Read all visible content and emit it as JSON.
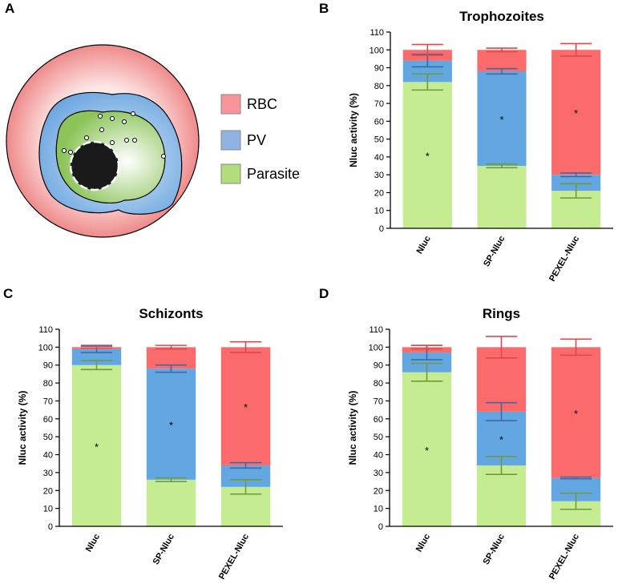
{
  "diagram": {
    "panel_label": "A",
    "legend": [
      {
        "label": "RBC",
        "color": "#f7959a"
      },
      {
        "label": "PV",
        "color": "#8fb3e0"
      },
      {
        "label": "Parasite",
        "color": "#b3dc7a"
      }
    ]
  },
  "chart_data": [
    {
      "type": "bar",
      "stacked": true,
      "panel_label": "B",
      "title": "Trophozoites",
      "ylabel": "Nluc activity (%)",
      "categories": [
        "Nluc",
        "SP-Nluc",
        "PEXEL-Nluc"
      ],
      "ylim": [
        0,
        110
      ],
      "yticks": [
        0,
        10,
        20,
        30,
        40,
        50,
        60,
        70,
        80,
        90,
        100,
        110
      ],
      "series": [
        {
          "color": "#c6ec92",
          "error_color": "#6f9a3a",
          "values": [
            82,
            35,
            21
          ],
          "errors": [
            4.5,
            1,
            4
          ],
          "annotations": [
            "*",
            null,
            null
          ]
        },
        {
          "color": "#62a6e2",
          "error_color": "#3f6aa5",
          "values": [
            12,
            53,
            9
          ],
          "errors": [
            3.5,
            1.5,
            1
          ],
          "annotations": [
            null,
            "*",
            null
          ]
        },
        {
          "color": "#fb6b6b",
          "error_color": "#e0474a",
          "values": [
            6,
            12,
            70
          ],
          "errors": [
            3,
            1,
            3.5
          ],
          "annotations": [
            null,
            null,
            "*"
          ]
        }
      ]
    },
    {
      "type": "bar",
      "stacked": true,
      "panel_label": "C",
      "title": "Schizonts",
      "ylabel": "Nluc activity (%)",
      "categories": [
        "Nluc",
        "SP-Nluc",
        "PEXEL-Nluc"
      ],
      "ylim": [
        0,
        110
      ],
      "yticks": [
        0,
        10,
        20,
        30,
        40,
        50,
        60,
        70,
        80,
        90,
        100,
        110
      ],
      "series": [
        {
          "color": "#c6ec92",
          "error_color": "#6f9a3a",
          "values": [
            90,
            26,
            22
          ],
          "errors": [
            2.5,
            1,
            4
          ],
          "annotations": [
            "*",
            null,
            null
          ]
        },
        {
          "color": "#62a6e2",
          "error_color": "#3f6aa5",
          "values": [
            9,
            62,
            12
          ],
          "errors": [
            2,
            2,
            1.5
          ],
          "annotations": [
            null,
            "*",
            null
          ]
        },
        {
          "color": "#fb6b6b",
          "error_color": "#e0474a",
          "values": [
            1,
            12,
            66
          ],
          "errors": [
            0.5,
            1,
            3
          ],
          "annotations": [
            null,
            null,
            "*"
          ]
        }
      ]
    },
    {
      "type": "bar",
      "stacked": true,
      "panel_label": "D",
      "title": "Rings",
      "ylabel": "Nluc activity (%)",
      "categories": [
        "Nluc",
        "SP-Nluc",
        "PEXEL-Nluc"
      ],
      "ylim": [
        0,
        110
      ],
      "yticks": [
        0,
        10,
        20,
        30,
        40,
        50,
        60,
        70,
        80,
        90,
        100,
        110
      ],
      "series": [
        {
          "color": "#c6ec92",
          "error_color": "#6f9a3a",
          "values": [
            86,
            34,
            14
          ],
          "errors": [
            5,
            5,
            4.5
          ],
          "annotations": [
            "*",
            null,
            null
          ]
        },
        {
          "color": "#62a6e2",
          "error_color": "#3f6aa5",
          "values": [
            11,
            30,
            13
          ],
          "errors": [
            4,
            5,
            0.5
          ],
          "annotations": [
            null,
            "*",
            null
          ]
        },
        {
          "color": "#fb6b6b",
          "error_color": "#e0474a",
          "values": [
            3,
            36,
            73
          ],
          "errors": [
            1,
            6,
            4.5
          ],
          "annotations": [
            null,
            null,
            "*"
          ]
        }
      ]
    }
  ]
}
